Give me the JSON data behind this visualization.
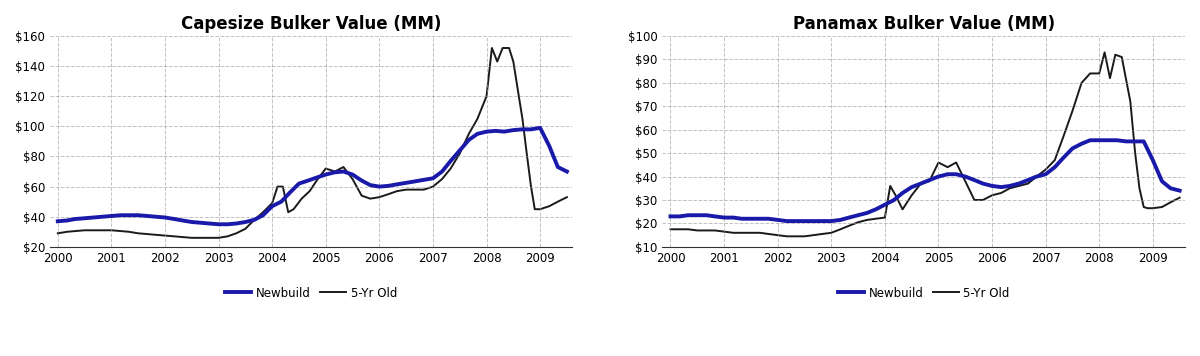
{
  "title_left": "Capesize Bulker Value (MM)",
  "title_right": "Panamax Bulker Value (MM)",
  "legend_newbuild": "Newbuild",
  "legend_5yr": "5-Yr Old",
  "newbuild_color": "#1a1aaa",
  "old_color": "#1a1a1a",
  "newbuild_linewidth": 2.8,
  "old_linewidth": 1.4,
  "background_color": "#ffffff",
  "grid_color": "#999999",
  "cape_xlim": [
    1999.85,
    2009.6
  ],
  "cape_ylim": [
    20,
    160
  ],
  "cape_yticks": [
    20,
    40,
    60,
    80,
    100,
    120,
    140,
    160
  ],
  "pana_xlim": [
    1999.85,
    2009.6
  ],
  "pana_ylim": [
    10,
    100
  ],
  "pana_yticks": [
    10,
    20,
    30,
    40,
    50,
    60,
    70,
    80,
    90,
    100
  ],
  "xticks": [
    2000,
    2001,
    2002,
    2003,
    2004,
    2005,
    2006,
    2007,
    2008,
    2009
  ],
  "cape_newbuild_x": [
    2000.0,
    2000.17,
    2000.33,
    2000.5,
    2000.67,
    2000.83,
    2001.0,
    2001.17,
    2001.33,
    2001.5,
    2001.67,
    2001.83,
    2002.0,
    2002.17,
    2002.33,
    2002.5,
    2002.67,
    2002.83,
    2003.0,
    2003.17,
    2003.33,
    2003.5,
    2003.67,
    2003.83,
    2004.0,
    2004.17,
    2004.33,
    2004.5,
    2004.67,
    2004.83,
    2005.0,
    2005.17,
    2005.33,
    2005.5,
    2005.67,
    2005.83,
    2006.0,
    2006.17,
    2006.33,
    2006.5,
    2006.67,
    2006.83,
    2007.0,
    2007.17,
    2007.33,
    2007.5,
    2007.67,
    2007.83,
    2008.0,
    2008.17,
    2008.33,
    2008.5,
    2008.67,
    2008.83,
    2009.0,
    2009.17,
    2009.33,
    2009.5
  ],
  "cape_newbuild_y": [
    37.0,
    37.5,
    38.5,
    39.0,
    39.5,
    40.0,
    40.5,
    41.0,
    41.0,
    41.0,
    40.5,
    40.0,
    39.5,
    38.5,
    37.5,
    36.5,
    36.0,
    35.5,
    35.0,
    35.0,
    35.5,
    36.5,
    38.0,
    41.0,
    47.0,
    50.0,
    56.0,
    62.0,
    64.0,
    66.0,
    68.0,
    69.5,
    70.0,
    68.0,
    64.0,
    61.0,
    60.0,
    60.5,
    61.5,
    62.5,
    63.5,
    64.5,
    65.5,
    70.0,
    77.0,
    84.0,
    91.0,
    95.0,
    96.5,
    97.0,
    96.5,
    97.5,
    98.0,
    98.0,
    99.0,
    87.0,
    73.0,
    70.0
  ],
  "cape_5yr_x": [
    2000.0,
    2000.17,
    2000.33,
    2000.5,
    2000.67,
    2000.83,
    2001.0,
    2001.17,
    2001.33,
    2001.5,
    2001.67,
    2001.83,
    2002.0,
    2002.17,
    2002.33,
    2002.5,
    2002.67,
    2002.83,
    2003.0,
    2003.17,
    2003.33,
    2003.5,
    2003.67,
    2003.83,
    2004.0,
    2004.1,
    2004.2,
    2004.3,
    2004.4,
    2004.55,
    2004.7,
    2004.83,
    2005.0,
    2005.17,
    2005.33,
    2005.5,
    2005.67,
    2005.83,
    2006.0,
    2006.17,
    2006.33,
    2006.5,
    2006.67,
    2006.83,
    2007.0,
    2007.17,
    2007.33,
    2007.5,
    2007.67,
    2007.83,
    2008.0,
    2008.1,
    2008.2,
    2008.3,
    2008.42,
    2008.5,
    2008.58,
    2008.67,
    2008.75,
    2008.83,
    2008.9,
    2009.0,
    2009.17,
    2009.33,
    2009.5
  ],
  "cape_5yr_y": [
    29.0,
    30.0,
    30.5,
    31.0,
    31.0,
    31.0,
    31.0,
    30.5,
    30.0,
    29.0,
    28.5,
    28.0,
    27.5,
    27.0,
    26.5,
    26.0,
    26.0,
    26.0,
    26.0,
    27.0,
    29.0,
    32.0,
    38.0,
    43.0,
    49.0,
    60.0,
    60.0,
    43.0,
    45.0,
    52.0,
    57.0,
    64.0,
    72.0,
    70.0,
    73.0,
    65.0,
    54.0,
    52.0,
    53.0,
    55.0,
    57.0,
    58.0,
    58.0,
    58.0,
    60.0,
    65.0,
    72.0,
    82.0,
    95.0,
    105.0,
    120.0,
    152.0,
    143.0,
    152.0,
    152.0,
    143.0,
    125.0,
    105.0,
    82.0,
    60.0,
    45.0,
    45.0,
    47.0,
    50.0,
    53.0
  ],
  "pana_newbuild_x": [
    2000.0,
    2000.17,
    2000.33,
    2000.5,
    2000.67,
    2000.83,
    2001.0,
    2001.17,
    2001.33,
    2001.5,
    2001.67,
    2001.83,
    2002.0,
    2002.17,
    2002.33,
    2002.5,
    2002.67,
    2002.83,
    2003.0,
    2003.17,
    2003.33,
    2003.5,
    2003.67,
    2003.83,
    2004.0,
    2004.17,
    2004.33,
    2004.5,
    2004.67,
    2004.83,
    2005.0,
    2005.17,
    2005.33,
    2005.5,
    2005.67,
    2005.83,
    2006.0,
    2006.17,
    2006.33,
    2006.5,
    2006.67,
    2006.83,
    2007.0,
    2007.17,
    2007.33,
    2007.5,
    2007.67,
    2007.83,
    2008.0,
    2008.17,
    2008.33,
    2008.5,
    2008.67,
    2008.83,
    2009.0,
    2009.17,
    2009.33,
    2009.5
  ],
  "pana_newbuild_y": [
    23.0,
    23.0,
    23.5,
    23.5,
    23.5,
    23.0,
    22.5,
    22.5,
    22.0,
    22.0,
    22.0,
    22.0,
    21.5,
    21.0,
    21.0,
    21.0,
    21.0,
    21.0,
    21.0,
    21.5,
    22.5,
    23.5,
    24.5,
    26.0,
    28.0,
    30.0,
    33.0,
    35.5,
    37.0,
    38.5,
    40.0,
    41.0,
    41.0,
    40.0,
    38.5,
    37.0,
    36.0,
    35.5,
    36.0,
    37.0,
    38.5,
    40.0,
    41.0,
    44.0,
    48.0,
    52.0,
    54.0,
    55.5,
    55.5,
    55.5,
    55.5,
    55.0,
    55.0,
    55.0,
    47.0,
    38.0,
    35.0,
    34.0
  ],
  "pana_5yr_x": [
    2000.0,
    2000.17,
    2000.33,
    2000.5,
    2000.67,
    2000.83,
    2001.0,
    2001.17,
    2001.33,
    2001.5,
    2001.67,
    2001.83,
    2002.0,
    2002.17,
    2002.33,
    2002.5,
    2002.67,
    2002.83,
    2003.0,
    2003.17,
    2003.33,
    2003.5,
    2003.67,
    2003.83,
    2004.0,
    2004.1,
    2004.2,
    2004.33,
    2004.5,
    2004.67,
    2004.83,
    2005.0,
    2005.17,
    2005.33,
    2005.5,
    2005.67,
    2005.83,
    2006.0,
    2006.17,
    2006.33,
    2006.5,
    2006.67,
    2006.83,
    2007.0,
    2007.17,
    2007.33,
    2007.5,
    2007.67,
    2007.83,
    2008.0,
    2008.1,
    2008.2,
    2008.3,
    2008.42,
    2008.58,
    2008.67,
    2008.75,
    2008.83,
    2008.9,
    2009.0,
    2009.17,
    2009.33,
    2009.5
  ],
  "pana_5yr_y": [
    17.5,
    17.5,
    17.5,
    17.0,
    17.0,
    17.0,
    16.5,
    16.0,
    16.0,
    16.0,
    16.0,
    15.5,
    15.0,
    14.5,
    14.5,
    14.5,
    15.0,
    15.5,
    16.0,
    17.5,
    19.0,
    20.5,
    21.5,
    22.0,
    22.5,
    36.0,
    32.0,
    26.0,
    32.0,
    37.0,
    38.0,
    46.0,
    44.0,
    46.0,
    38.0,
    30.0,
    30.0,
    32.0,
    33.0,
    35.0,
    36.0,
    37.0,
    40.0,
    43.0,
    47.0,
    57.0,
    68.0,
    80.0,
    84.0,
    84.0,
    93.0,
    82.0,
    92.0,
    91.0,
    72.0,
    50.0,
    35.0,
    27.0,
    26.5,
    26.5,
    27.0,
    29.0,
    31.0
  ]
}
